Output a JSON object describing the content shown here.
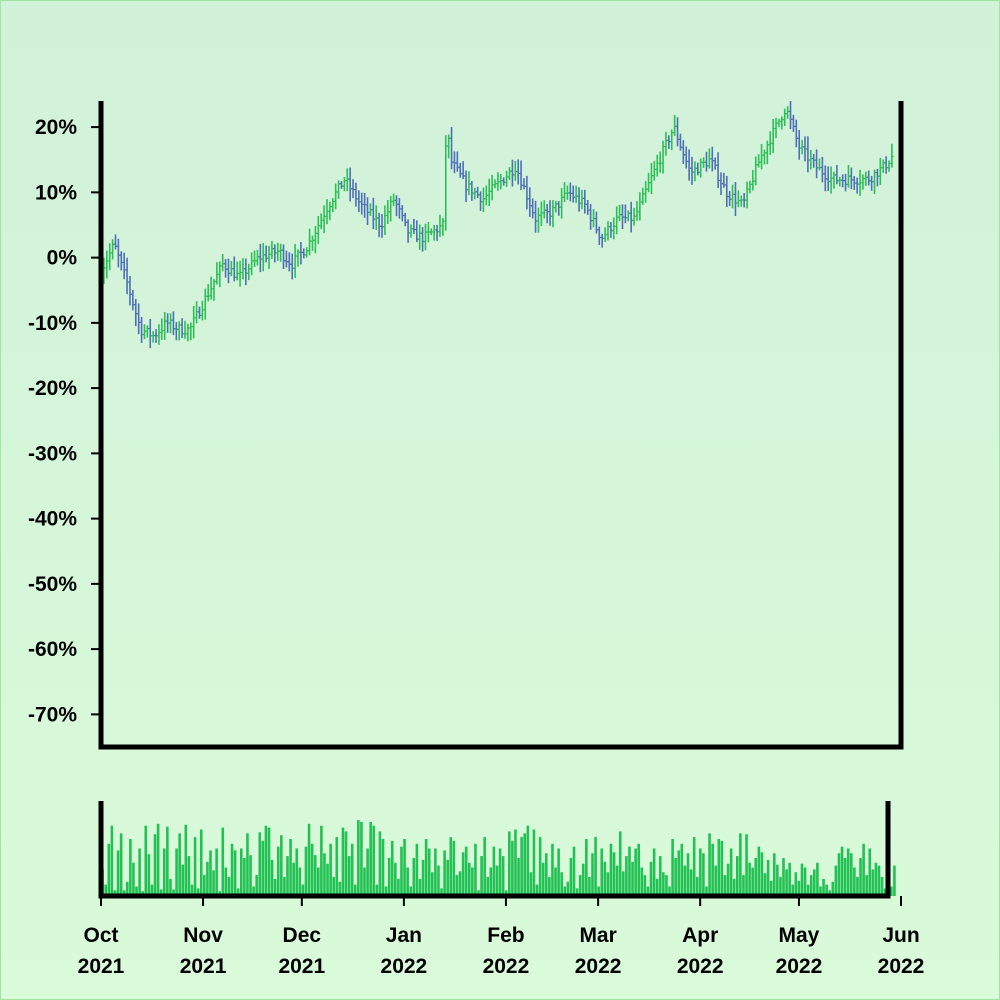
{
  "chart_data": {
    "type": "ohlc",
    "title": "",
    "xlabel": "",
    "ylabel": "",
    "colors": {
      "up": "#2bbf55",
      "down": "#4e6fb7",
      "volume": "#22c153",
      "axis": "#000000"
    },
    "y_axis": {
      "unit": "%",
      "ylim": [
        -75,
        24
      ],
      "ticks": [
        20,
        10,
        0,
        -10,
        -20,
        -30,
        -40,
        -50,
        -60,
        -70
      ],
      "tick_labels": [
        "20%",
        "10%",
        "0%",
        "-10%",
        "-20%",
        "-30%",
        "-40%",
        "-50%",
        "-60%",
        "-70%"
      ]
    },
    "x_axis": {
      "start": "2021-10-01",
      "end": "2022-06-01",
      "ticks": [
        {
          "date": "2021-10-01",
          "month": "Oct",
          "year": "2021"
        },
        {
          "date": "2021-11-01",
          "month": "Nov",
          "year": "2021"
        },
        {
          "date": "2021-12-01",
          "month": "Dec",
          "year": "2021"
        },
        {
          "date": "2022-01-01",
          "month": "Jan",
          "year": "2022"
        },
        {
          "date": "2022-02-01",
          "month": "Feb",
          "year": "2022"
        },
        {
          "date": "2022-03-01",
          "month": "Mar",
          "year": "2022"
        },
        {
          "date": "2022-04-01",
          "month": "Apr",
          "year": "2022"
        },
        {
          "date": "2022-05-01",
          "month": "May",
          "year": "2022"
        },
        {
          "date": "2022-06-01",
          "month": "Jun",
          "year": "2022"
        }
      ]
    },
    "series": [
      {
        "kind": "ohlc",
        "close_path": [
          [
            "2021-10-01",
            -2
          ],
          [
            "2021-10-05",
            2
          ],
          [
            "2021-10-09",
            -4
          ],
          [
            "2021-10-13",
            -11
          ],
          [
            "2021-10-17",
            -12
          ],
          [
            "2021-10-21",
            -10
          ],
          [
            "2021-10-25",
            -11
          ],
          [
            "2021-10-28",
            -11
          ],
          [
            "2021-11-02",
            -6
          ],
          [
            "2021-11-07",
            -1
          ],
          [
            "2021-11-12",
            -3
          ],
          [
            "2021-11-18",
            0
          ],
          [
            "2021-11-24",
            1
          ],
          [
            "2021-11-28",
            -1
          ],
          [
            "2021-12-03",
            2
          ],
          [
            "2021-12-09",
            8
          ],
          [
            "2021-12-14",
            12
          ],
          [
            "2021-12-19",
            8
          ],
          [
            "2021-12-25",
            5
          ],
          [
            "2021-12-29",
            9
          ],
          [
            "2022-01-02",
            4
          ],
          [
            "2022-01-07",
            3
          ],
          [
            "2022-01-13",
            5
          ],
          [
            "2022-01-14",
            22
          ],
          [
            "2022-01-15",
            15
          ],
          [
            "2022-01-20",
            11
          ],
          [
            "2022-01-25",
            9
          ],
          [
            "2022-01-29",
            11
          ],
          [
            "2022-02-04",
            14
          ],
          [
            "2022-02-10",
            6
          ],
          [
            "2022-02-15",
            7
          ],
          [
            "2022-02-20",
            10
          ],
          [
            "2022-02-25",
            8
          ],
          [
            "2022-03-02",
            3
          ],
          [
            "2022-03-07",
            6
          ],
          [
            "2022-03-12",
            6
          ],
          [
            "2022-03-17",
            12
          ],
          [
            "2022-03-24",
            20
          ],
          [
            "2022-03-29",
            13
          ],
          [
            "2022-04-04",
            15
          ],
          [
            "2022-04-09",
            10
          ],
          [
            "2022-04-14",
            8
          ],
          [
            "2022-04-19",
            15
          ],
          [
            "2022-04-24",
            20
          ],
          [
            "2022-04-27",
            23
          ],
          [
            "2022-05-01",
            17
          ],
          [
            "2022-05-06",
            14
          ],
          [
            "2022-05-11",
            12
          ],
          [
            "2022-05-17",
            12
          ],
          [
            "2022-05-22",
            12
          ],
          [
            "2022-05-27",
            14
          ],
          [
            "2022-05-30",
            16
          ]
        ]
      },
      {
        "kind": "volume",
        "range": [
          0,
          1
        ],
        "values": [
          0.28,
          0.12,
          0.55,
          0.74,
          0.06,
          0.48,
          0.66,
          0.06,
          0.15,
          0.6,
          0.35,
          0.1,
          0.5,
          0.05,
          0.74,
          0.44,
          0.12,
          0.65,
          0.76,
          0.07,
          0.5,
          0.73,
          0.18,
          0.07,
          0.5,
          0.66,
          0.33,
          0.75,
          0.42,
          0.12,
          0.62,
          0.08,
          0.7,
          0.22,
          0.36,
          0.48,
          0.27,
          0.5,
          0.05,
          0.72,
          0.3,
          0.2,
          0.55,
          0.48,
          0.08,
          0.5,
          0.4,
          0.66,
          0.43,
          0.1,
          0.22,
          0.67,
          0.58,
          0.74,
          0.72,
          0.38,
          0.18,
          0.52,
          0.64,
          0.2,
          0.42,
          0.6,
          0.35,
          0.5,
          0.3,
          0.12,
          0.52,
          0.76,
          0.55,
          0.43,
          0.3,
          0.74,
          0.45,
          0.34,
          0.55,
          0.2,
          0.62,
          0.15,
          0.72,
          0.68,
          0.42,
          0.55,
          0.12,
          0.8,
          0.78,
          0.3,
          0.5,
          0.78,
          0.74,
          0.12,
          0.68,
          0.6,
          0.1,
          0.4,
          0.58,
          0.35,
          0.18,
          0.52,
          0.6,
          0.3,
          0.1,
          0.4,
          0.55,
          0.18,
          0.38,
          0.6,
          0.5,
          0.25,
          0.5,
          0.32,
          0.08,
          0.48,
          0.38,
          0.62,
          0.58,
          0.22,
          0.26,
          0.46,
          0.52,
          0.35,
          0.3,
          0.55,
          0.06,
          0.42,
          0.62,
          0.2,
          0.3,
          0.52,
          0.32,
          0.5,
          0.42,
          0.06,
          0.68,
          0.58,
          0.7,
          0.4,
          0.62,
          0.66,
          0.74,
          0.25,
          0.7,
          0.12,
          0.62,
          0.35,
          0.45,
          0.2,
          0.55,
          0.3,
          0.5,
          0.25,
          0.1,
          0.15,
          0.4,
          0.52,
          0.08,
          0.22,
          0.34,
          0.6,
          0.2,
          0.45,
          0.62,
          0.1,
          0.5,
          0.36,
          0.25,
          0.55,
          0.46,
          0.32,
          0.68,
          0.26,
          0.42,
          0.52,
          0.36,
          0.5,
          0.55,
          0.3,
          0.22,
          0.1,
          0.36,
          0.5,
          0.18,
          0.42,
          0.25,
          0.22,
          0.1,
          0.6,
          0.4,
          0.48,
          0.55,
          0.32,
          0.45,
          0.28,
          0.62,
          0.2,
          0.5,
          0.45,
          0.1,
          0.66,
          0.55,
          0.32,
          0.6,
          0.58,
          0.22,
          0.34,
          0.5,
          0.18,
          0.42,
          0.66,
          0.22,
          0.65,
          0.35,
          0.3,
          0.4,
          0.52,
          0.46,
          0.24,
          0.38,
          0.16,
          0.45,
          0.33,
          0.2,
          0.4,
          0.28,
          0.35,
          0.12,
          0.25,
          0.16,
          0.34,
          0.3,
          0.12,
          0.22,
          0.28,
          0.35,
          0.1,
          0.18,
          0.12,
          0.06,
          0.15,
          0.32,
          0.45,
          0.52,
          0.4,
          0.5,
          0.45,
          0.3,
          0.2,
          0.4,
          0.55,
          0.22,
          0.5,
          0.28,
          0.35,
          0.32,
          0.2,
          0.08,
          0.3,
          0.1,
          0.32
        ]
      }
    ]
  }
}
